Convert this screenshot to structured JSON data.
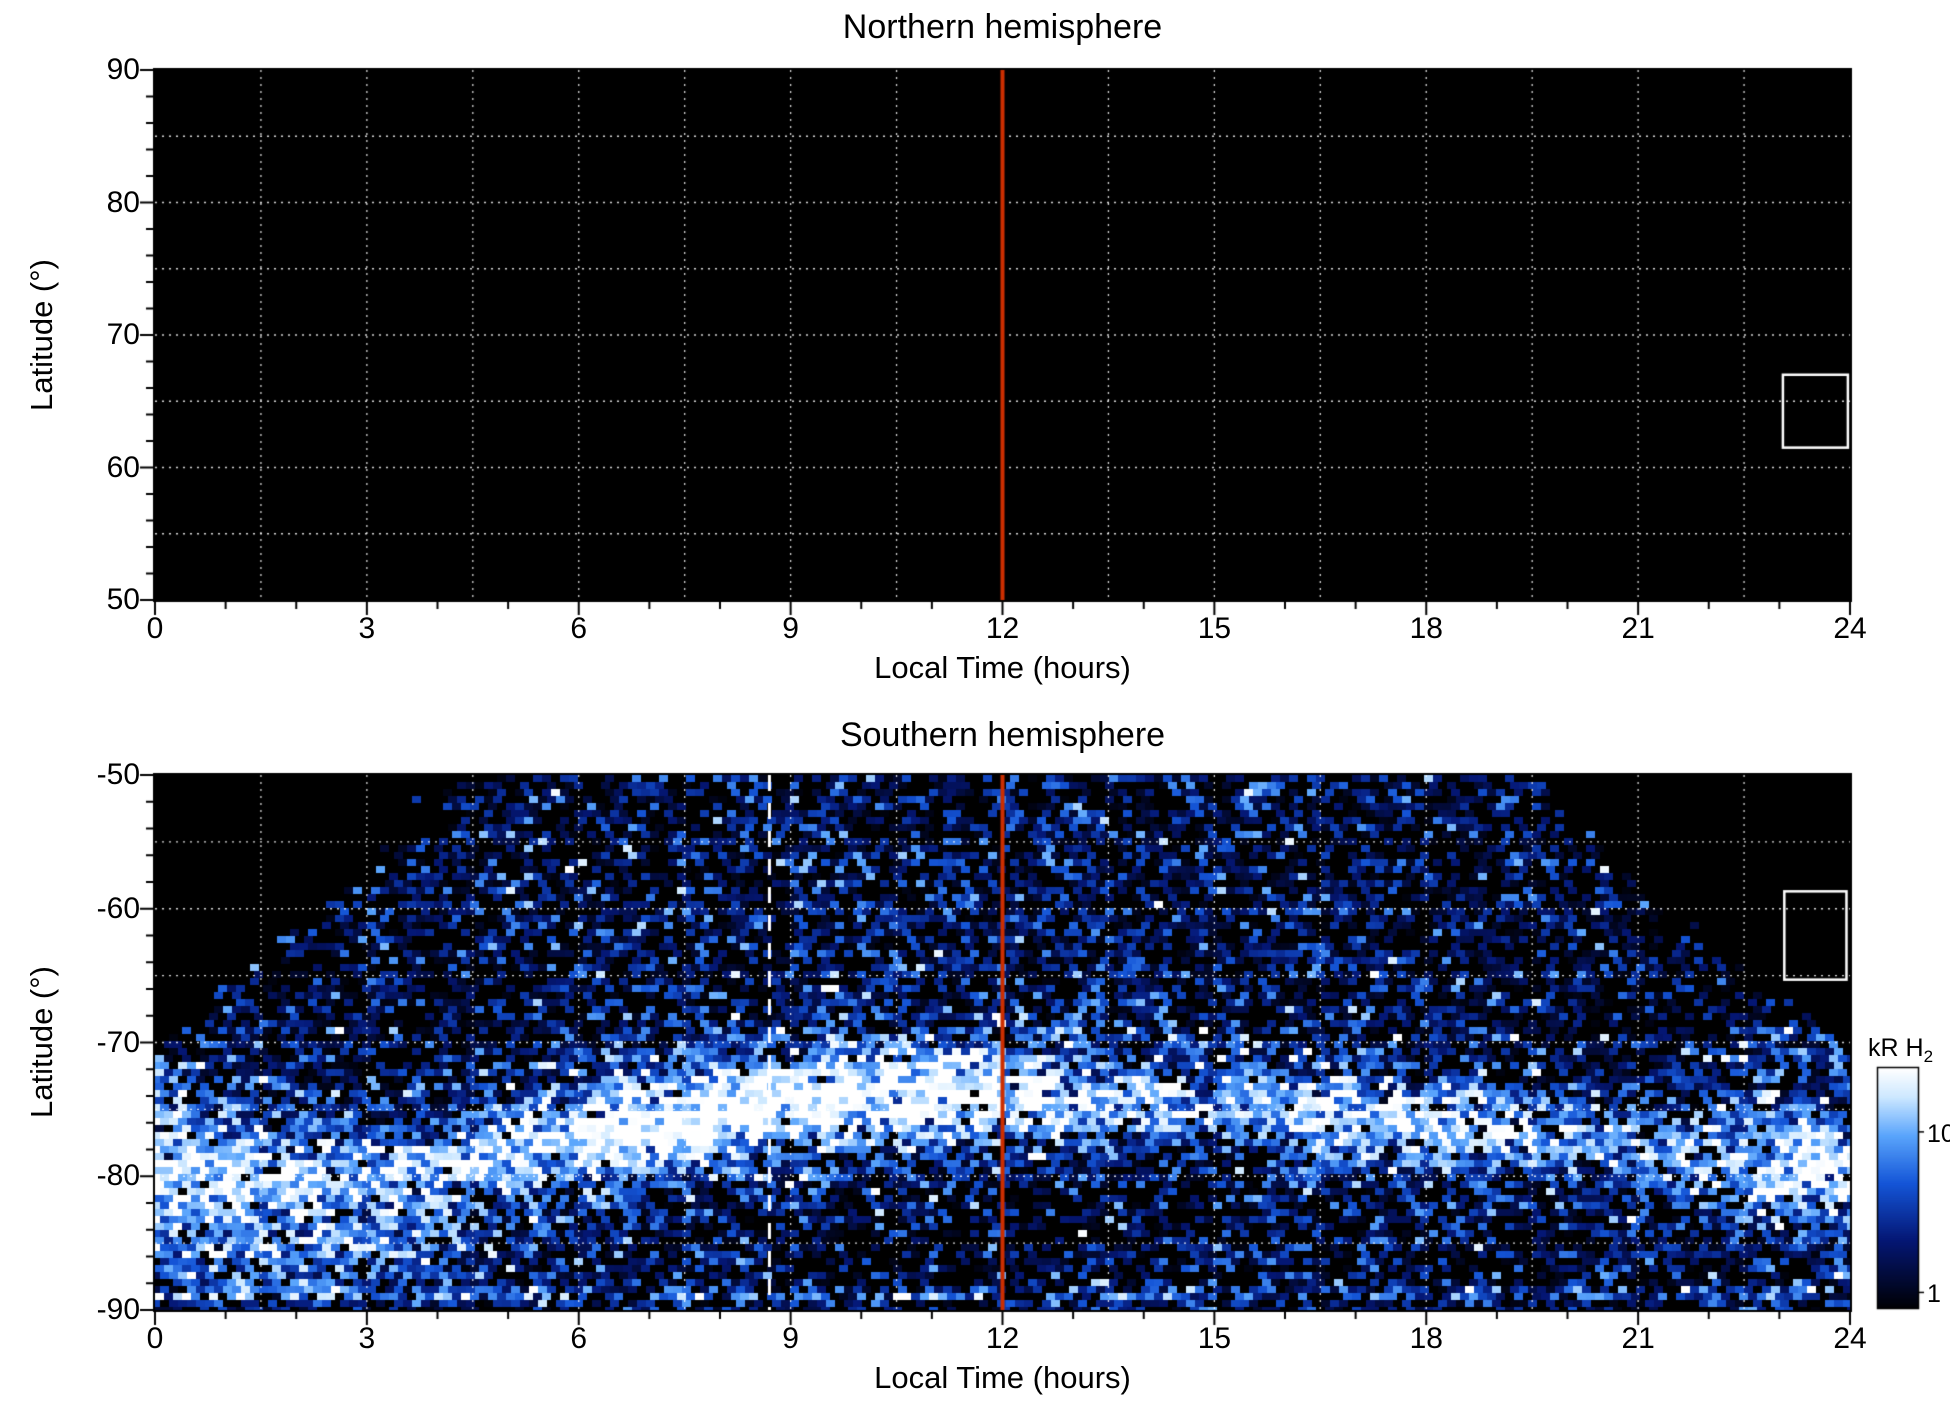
{
  "figure": {
    "background": "#ffffff",
    "accent_red": "#cc2e00",
    "grid_color": "#ffffff"
  },
  "north": {
    "title": "Northern hemisphere",
    "xlabel": "Local Time (hours)",
    "ylabel": "Latitude (°)",
    "xticks": [
      0,
      3,
      6,
      9,
      12,
      15,
      18,
      21,
      24
    ],
    "yticks": [
      90,
      80,
      70,
      60,
      50
    ]
  },
  "south": {
    "title": "Southern hemisphere",
    "xlabel": "Local Time (hours)",
    "ylabel": "Latitude (°)",
    "xticks": [
      0,
      3,
      6,
      9,
      12,
      15,
      18,
      21,
      24
    ],
    "yticks": [
      -50,
      -60,
      -70,
      -80,
      -90
    ]
  },
  "colorbar": {
    "label": "kR H",
    "label_sub": "2",
    "ticks": [
      10,
      1
    ]
  },
  "colormap": {
    "scale": "log",
    "vmin": 0.8,
    "vmax": 25,
    "stops": [
      [
        0,
        [
          0,
          0,
          4
        ]
      ],
      [
        0.28,
        [
          4,
          22,
          115
        ]
      ],
      [
        0.52,
        [
          20,
          85,
          215
        ]
      ],
      [
        0.72,
        [
          90,
          165,
          252
        ]
      ],
      [
        0.88,
        [
          205,
          232,
          255
        ]
      ],
      [
        1,
        [
          255,
          255,
          255
        ]
      ]
    ]
  },
  "chart_data": [
    {
      "type": "heatmap",
      "title": "Northern hemisphere",
      "xlabel": "Local Time (hours)",
      "ylabel": "Latitude (°)",
      "xlim": [
        0,
        24
      ],
      "ylim": [
        50,
        90
      ],
      "xticks": [
        0,
        3,
        6,
        9,
        12,
        15,
        18,
        21,
        24
      ],
      "yticks": [
        90,
        80,
        70,
        60,
        50
      ],
      "grid": {
        "x_step_hours": 1.5,
        "y_step_deg": 5,
        "style": "white dotted"
      },
      "background": "black — no detected H2 emission in this panel",
      "annotations": {
        "red_vertical_line_lt": 12,
        "white_box": {
          "lt": [
            23.05,
            23.97
          ],
          "lat": [
            61.5,
            67.0
          ]
        }
      }
    },
    {
      "type": "heatmap",
      "title": "Southern hemisphere",
      "xlabel": "Local Time (hours)",
      "ylabel": "Latitude (°)",
      "xlim": [
        0,
        24
      ],
      "ylim": [
        -90,
        -50
      ],
      "xticks": [
        0,
        3,
        6,
        9,
        12,
        15,
        18,
        21,
        24
      ],
      "yticks": [
        -50,
        -60,
        -70,
        -80,
        -90
      ],
      "grid": {
        "x_step_hours": 1.5,
        "y_step_deg": 5,
        "style": "white dotted"
      },
      "quantity": "H2 auroral emission brightness (kR)",
      "colorbar": {
        "label": "kR H2",
        "scale": "log",
        "ticks": [
          10,
          1
        ],
        "range": [
          0.8,
          25
        ]
      },
      "coverage": {
        "full_coverage_below_lat": -70.5,
        "no_data_wedges": "black wedges above -70.5°: no observations for LT < ~4.4 h and LT > ~19.6 h at -50°, tapering to 0 h gap at -70.5°",
        "edge_gap_hours_at_minus50": 4.4,
        "edge_exponent": 0.85
      },
      "auroral_oval": {
        "hours": [
          0,
          1,
          2,
          3,
          4,
          5,
          6,
          7,
          8,
          9,
          10,
          11,
          12,
          13,
          14,
          15,
          16,
          17,
          18,
          19,
          20,
          21,
          22,
          23,
          24
        ],
        "center_lat": [
          -80.0,
          -80.0,
          -80.0,
          -79.6,
          -79.0,
          -78.0,
          -77.0,
          -76.1,
          -75.2,
          -74.5,
          -74.0,
          -73.6,
          -73.5,
          -73.9,
          -74.3,
          -74.7,
          -75.0,
          -75.4,
          -75.9,
          -76.4,
          -77.1,
          -78.0,
          -79.0,
          -79.6,
          -80.0
        ],
        "peak_kR": [
          11,
          11,
          9,
          7.5,
          9,
          14,
          20,
          24,
          26,
          26,
          24,
          22,
          17,
          10,
          8,
          8,
          9,
          11,
          11,
          8,
          6,
          6,
          7,
          9,
          11
        ],
        "notes": "brightest saturated-white arc between LT 5-12 near -74°; diffuse speckled blue emission fills -50° to -70°; secondary bright patches LT 0-4 near -84° and at both LT edges below -70°"
      },
      "annotations": {
        "red_vertical_line_lt": 12,
        "white_dashed_line_lt": 8.7,
        "white_box": {
          "lt": [
            23.07,
            23.95
          ],
          "lat": [
            -58.7,
            -65.3
          ]
        },
        "bright_stripe_lat": -88.8
      }
    }
  ]
}
